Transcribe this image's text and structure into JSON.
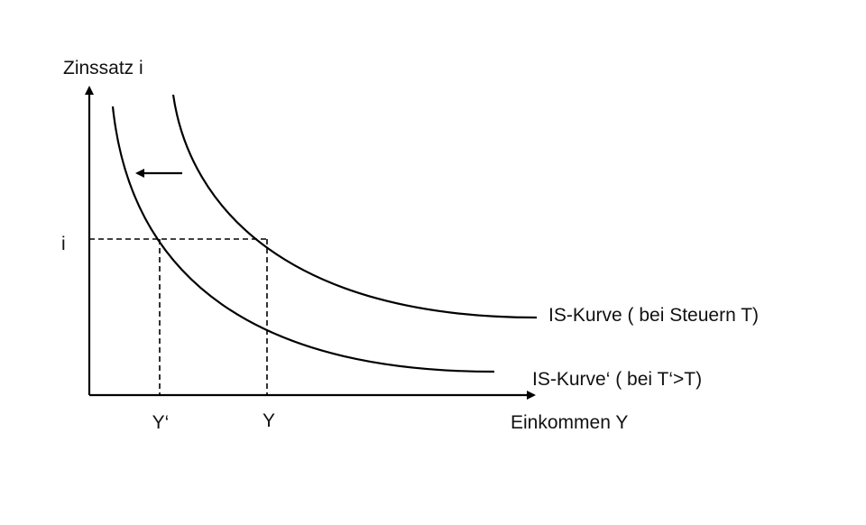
{
  "axes": {
    "y_label": "Zinssatz i",
    "x_label": "Einkommen Y"
  },
  "markers": {
    "i": "i",
    "y_prime": "Y‘",
    "y": "Y"
  },
  "curves": [
    {
      "label": "IS-Kurve ( bei Steuern T)"
    },
    {
      "label": "IS-Kurve‘ ( bei T‘>T)"
    }
  ]
}
